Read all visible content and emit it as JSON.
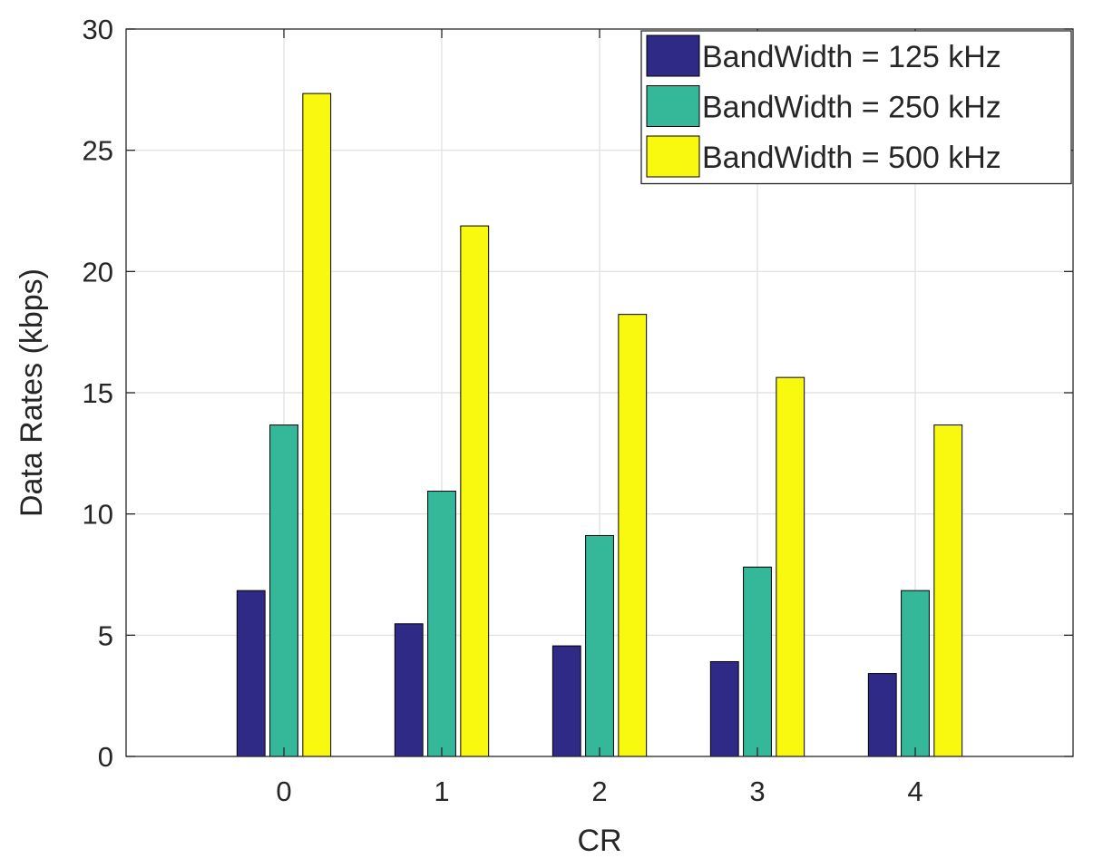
{
  "chart_data": {
    "type": "bar",
    "title": "",
    "xlabel": "CR",
    "ylabel": "Data Rates (kbps)",
    "categories": [
      "0",
      "1",
      "2",
      "3",
      "4"
    ],
    "ylim": [
      0,
      30
    ],
    "yticks": [
      0,
      5,
      10,
      15,
      20,
      25,
      30
    ],
    "grid": true,
    "legend_position": "top-right",
    "series": [
      {
        "name": "BandWidth = 125 kHz",
        "color": "#2e2a86",
        "values": [
          6.84,
          5.47,
          4.56,
          3.91,
          3.42
        ]
      },
      {
        "name": "BandWidth = 250 kHz",
        "color": "#35b89a",
        "values": [
          13.67,
          10.94,
          9.11,
          7.81,
          6.84
        ]
      },
      {
        "name": "BandWidth = 500 kHz",
        "color": "#f9f90f",
        "values": [
          27.34,
          21.88,
          18.23,
          15.63,
          13.67
        ]
      }
    ]
  }
}
